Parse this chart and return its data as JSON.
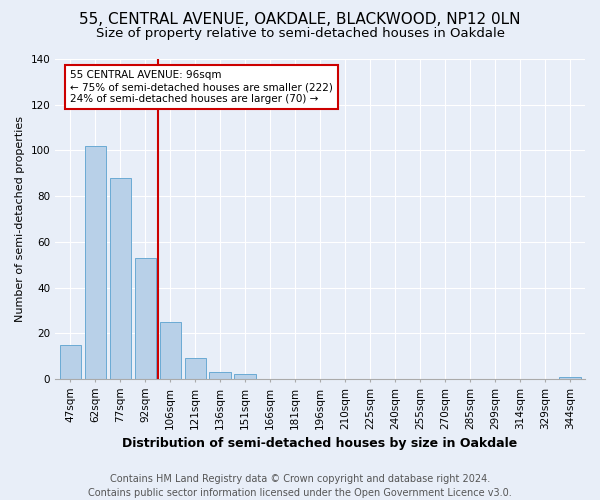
{
  "title1": "55, CENTRAL AVENUE, OAKDALE, BLACKWOOD, NP12 0LN",
  "title2": "Size of property relative to semi-detached houses in Oakdale",
  "xlabel": "Distribution of semi-detached houses by size in Oakdale",
  "ylabel": "Number of semi-detached properties",
  "categories": [
    "47sqm",
    "62sqm",
    "77sqm",
    "92sqm",
    "106sqm",
    "121sqm",
    "136sqm",
    "151sqm",
    "166sqm",
    "181sqm",
    "196sqm",
    "210sqm",
    "225sqm",
    "240sqm",
    "255sqm",
    "270sqm",
    "285sqm",
    "299sqm",
    "314sqm",
    "329sqm",
    "344sqm"
  ],
  "values": [
    15,
    102,
    88,
    53,
    25,
    9,
    3,
    2,
    0,
    0,
    0,
    0,
    0,
    0,
    0,
    0,
    0,
    0,
    0,
    0,
    1
  ],
  "bar_color": "#b8d0e8",
  "bar_edge_color": "#6aaad4",
  "vline_x": 3.5,
  "vline_color": "#cc0000",
  "annotation_text": "55 CENTRAL AVENUE: 96sqm\n← 75% of semi-detached houses are smaller (222)\n24% of semi-detached houses are larger (70) →",
  "annotation_box_color": "#ffffff",
  "annotation_box_edge": "#cc0000",
  "ylim": [
    0,
    140
  ],
  "yticks": [
    0,
    20,
    40,
    60,
    80,
    100,
    120,
    140
  ],
  "footer": "Contains HM Land Registry data © Crown copyright and database right 2024.\nContains public sector information licensed under the Open Government Licence v3.0.",
  "background_color": "#e8eef8",
  "grid_color": "#ffffff",
  "title1_fontsize": 11,
  "title2_fontsize": 9.5,
  "xlabel_fontsize": 9,
  "ylabel_fontsize": 8,
  "footer_fontsize": 7,
  "tick_fontsize": 7.5,
  "ann_fontsize": 7.5
}
